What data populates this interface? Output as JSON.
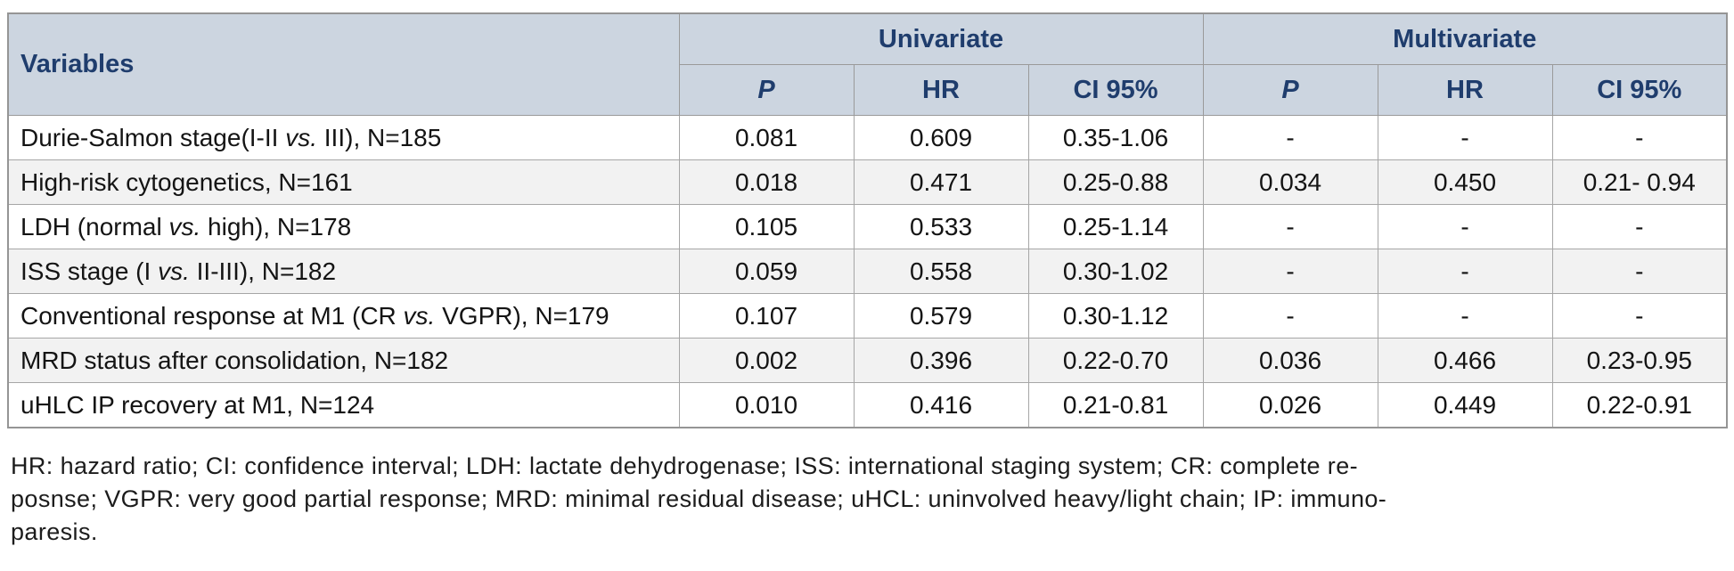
{
  "table": {
    "header": {
      "variables": "Variables",
      "univariate": "Univariate",
      "multivariate": "Multivariate",
      "sub": {
        "p": "P",
        "hr": "HR",
        "ci": "CI 95%"
      }
    },
    "rows": [
      {
        "variable": [
          "Durie-Salmon stage(I-II ",
          "vs.",
          " III), N=185"
        ],
        "uni": {
          "p": "0.081",
          "hr": "0.609",
          "ci": "0.35-1.06"
        },
        "multi": {
          "p": "-",
          "hr": "-",
          "ci": "-"
        }
      },
      {
        "variable": [
          "High-risk cytogenetics, N=161",
          "",
          ""
        ],
        "uni": {
          "p": "0.018",
          "hr": "0.471",
          "ci": "0.25-0.88"
        },
        "multi": {
          "p": "0.034",
          "hr": "0.450",
          "ci": "0.21- 0.94"
        }
      },
      {
        "variable": [
          "LDH (normal ",
          "vs.",
          " high), N=178"
        ],
        "uni": {
          "p": "0.105",
          "hr": "0.533",
          "ci": "0.25-1.14"
        },
        "multi": {
          "p": "-",
          "hr": "-",
          "ci": "-"
        }
      },
      {
        "variable": [
          "ISS stage (I ",
          "vs.",
          " II-III), N=182"
        ],
        "uni": {
          "p": "0.059",
          "hr": "0.558",
          "ci": "0.30-1.02"
        },
        "multi": {
          "p": "-",
          "hr": "-",
          "ci": "-"
        }
      },
      {
        "variable": [
          "Conventional response at M1 (CR ",
          "vs.",
          " VGPR), N=179"
        ],
        "uni": {
          "p": "0.107",
          "hr": "0.579",
          "ci": "0.30-1.12"
        },
        "multi": {
          "p": "-",
          "hr": "-",
          "ci": "-"
        }
      },
      {
        "variable": [
          "MRD status after consolidation, N=182",
          "",
          ""
        ],
        "uni": {
          "p": "0.002",
          "hr": "0.396",
          "ci": "0.22-0.70"
        },
        "multi": {
          "p": "0.036",
          "hr": "0.466",
          "ci": "0.23-0.95"
        }
      },
      {
        "variable": [
          "uHLC IP recovery at M1, N=124",
          "",
          ""
        ],
        "uni": {
          "p": "0.010",
          "hr": "0.416",
          "ci": "0.21-0.81"
        },
        "multi": {
          "p": "0.026",
          "hr": "0.449",
          "ci": "0.22-0.91"
        }
      }
    ]
  },
  "footnote": {
    "lines": [
      "HR: hazard ratio; CI: confidence interval; LDH: lactate dehydrogenase; ISS: international staging system; CR: complete re-",
      "posnse; VGPR: very good partial response; MRD: minimal residual disease; uHCL: uninvolved heavy/light chain; IP: immuno-",
      "paresis."
    ]
  },
  "colors": {
    "header_bg": "#ccd5e0",
    "header_text": "#1f3d6d",
    "row_alt_bg": "#f2f2f2",
    "border": "#9a9a9a"
  }
}
